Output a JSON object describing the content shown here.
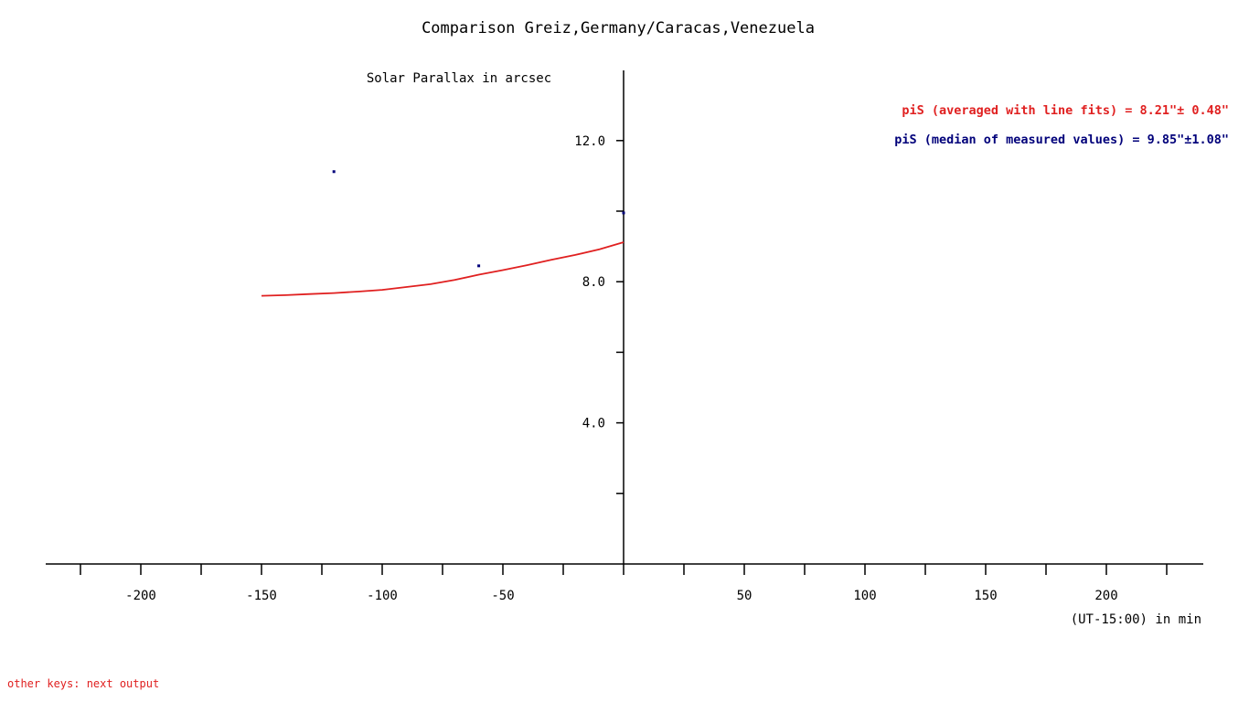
{
  "chart_data": {
    "type": "line",
    "title": "Comparison Greiz,Germany/Caracas,Venezuela",
    "ylabel": "Solar Parallax in arcsec",
    "xlabel": "(UT-15:00) in min",
    "xlim": [
      -238,
      240
    ],
    "ylim": [
      0,
      14
    ],
    "x_ticks": [
      -225,
      -200,
      -175,
      -150,
      -125,
      -100,
      -75,
      -50,
      -25,
      0,
      25,
      50,
      75,
      100,
      125,
      150,
      175,
      200,
      225
    ],
    "x_tick_labels": [
      {
        "x": -200,
        "label": "-200"
      },
      {
        "x": -150,
        "label": "-150"
      },
      {
        "x": -100,
        "label": "-100"
      },
      {
        "x": -50,
        "label": "-50"
      },
      {
        "x": 50,
        "label": "50"
      },
      {
        "x": 100,
        "label": "100"
      },
      {
        "x": 150,
        "label": "150"
      },
      {
        "x": 200,
        "label": "200"
      }
    ],
    "y_ticks": [
      2,
      4,
      6,
      8,
      10,
      12
    ],
    "y_tick_labels": [
      {
        "y": 12,
        "label": "12.0"
      },
      {
        "y": 8,
        "label": "8.0"
      },
      {
        "y": 4,
        "label": "4.0"
      }
    ],
    "series": [
      {
        "name": "piS (averaged with line fits)",
        "color": "#e02020",
        "kind": "line",
        "x": [
          -150,
          -140,
          -130,
          -120,
          -110,
          -100,
          -90,
          -80,
          -70,
          -60,
          -50,
          -40,
          -30,
          -20,
          -10,
          0
        ],
        "y": [
          7.6,
          7.62,
          7.65,
          7.68,
          7.72,
          7.77,
          7.85,
          7.93,
          8.05,
          8.2,
          8.33,
          8.47,
          8.62,
          8.76,
          8.92,
          9.12
        ]
      },
      {
        "name": "piS (median of measured values)",
        "color": "#00007a",
        "kind": "scatter",
        "x": [
          -120,
          -60,
          0
        ],
        "y": [
          11.12,
          8.45,
          9.95
        ]
      }
    ],
    "annotations": [
      {
        "text": "piS (averaged with line fits) = 8.21\"± 0.48\"",
        "color": "#e02020"
      },
      {
        "text": "piS (median of measured values) = 9.85\"±1.08\"",
        "color": "#00007a"
      }
    ]
  },
  "footer": {
    "hint": "other keys: next output"
  }
}
